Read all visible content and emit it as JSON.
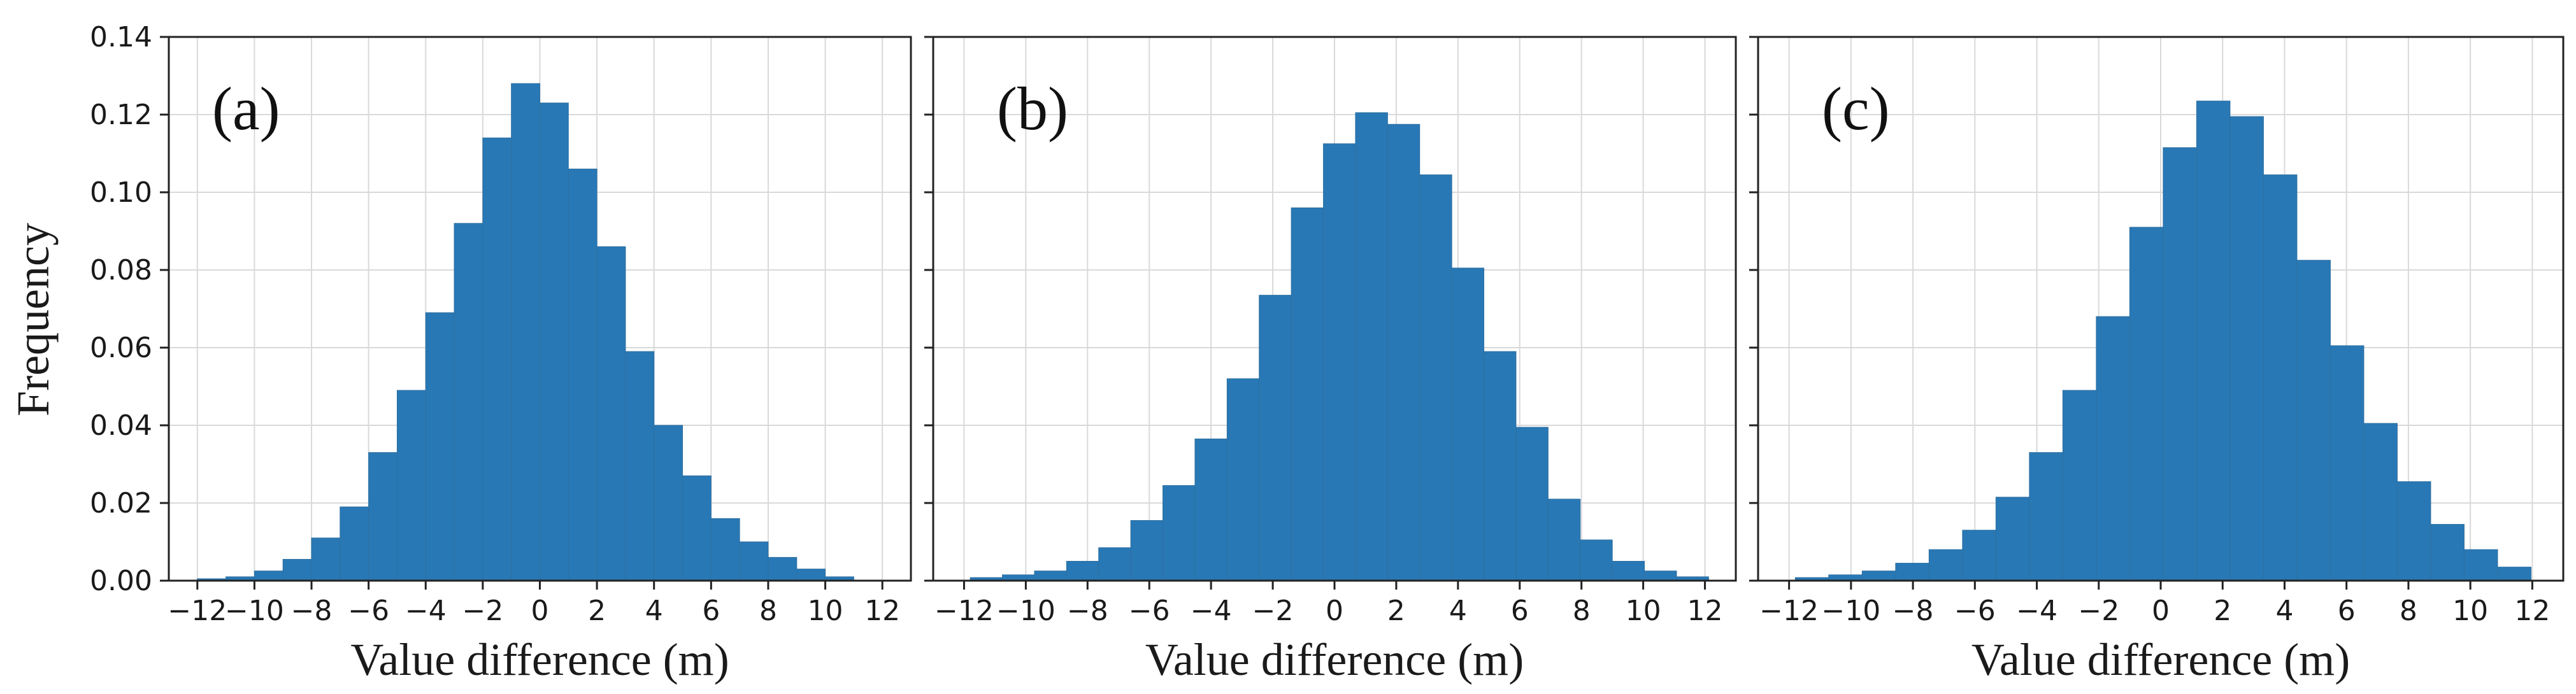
{
  "colors": {
    "bar": "#2878b5",
    "bar_edge": "#2e6fa0",
    "grid": "#d9d9d9",
    "frame": "#222222"
  },
  "figure": {
    "ylabel": "Frequency"
  },
  "chart_data": [
    {
      "type": "bar",
      "panel_label": "(a)",
      "title": "",
      "xlabel": "Value difference (m)",
      "ylabel": "Frequency",
      "xlim": [
        -13,
        13
      ],
      "ylim": [
        0,
        0.14
      ],
      "xticks": [
        -12,
        -10,
        -8,
        -6,
        -4,
        -2,
        0,
        2,
        4,
        6,
        8,
        10,
        12
      ],
      "yticks": [
        0.0,
        0.02,
        0.04,
        0.06,
        0.08,
        0.1,
        0.12,
        0.14
      ],
      "ytick_labels": [
        "0.00",
        "0.02",
        "0.04",
        "0.06",
        "0.08",
        "0.10",
        "0.12",
        "0.14"
      ],
      "grid": true,
      "bin_edges": [
        -12.0,
        -11.0,
        -10.0,
        -9.0,
        -8.0,
        -7.0,
        -6.0,
        -5.0,
        -4.0,
        -3.0,
        -2.0,
        -1.0,
        0.0,
        1.0,
        2.0,
        3.0,
        4.0,
        5.0,
        6.0,
        7.0,
        8.0,
        9.0,
        10.0,
        11.0
      ],
      "values": [
        0.0005,
        0.001,
        0.0025,
        0.0055,
        0.011,
        0.019,
        0.033,
        0.049,
        0.069,
        0.092,
        0.114,
        0.128,
        0.123,
        0.106,
        0.086,
        0.059,
        0.04,
        0.027,
        0.016,
        0.01,
        0.006,
        0.003,
        0.001
      ]
    },
    {
      "type": "bar",
      "panel_label": "(b)",
      "title": "",
      "xlabel": "Value difference (m)",
      "ylabel": "",
      "xlim": [
        -13,
        13
      ],
      "ylim": [
        0,
        0.14
      ],
      "xticks": [
        -12,
        -10,
        -8,
        -6,
        -4,
        -2,
        0,
        2,
        4,
        6,
        8,
        10,
        12
      ],
      "yticks": [
        0.0,
        0.02,
        0.04,
        0.06,
        0.08,
        0.1,
        0.12,
        0.14
      ],
      "grid": true,
      "bin_edges": [
        -11.8,
        -10.76,
        -9.72,
        -8.68,
        -7.64,
        -6.6,
        -5.56,
        -4.52,
        -3.48,
        -2.44,
        -1.4,
        -0.36,
        0.68,
        1.72,
        2.76,
        3.8,
        4.84,
        5.88,
        6.92,
        7.96,
        9.0,
        10.04,
        11.08,
        12.12
      ],
      "values": [
        0.0008,
        0.0015,
        0.0025,
        0.005,
        0.0085,
        0.0155,
        0.0245,
        0.0365,
        0.052,
        0.0735,
        0.096,
        0.1125,
        0.1205,
        0.1175,
        0.1045,
        0.0805,
        0.059,
        0.0395,
        0.021,
        0.0105,
        0.005,
        0.0025,
        0.001
      ]
    },
    {
      "type": "bar",
      "panel_label": "(c)",
      "title": "",
      "xlabel": "Value difference (m)",
      "ylabel": "",
      "xlim": [
        -13,
        13
      ],
      "ylim": [
        0,
        0.14
      ],
      "xticks": [
        -12,
        -10,
        -8,
        -6,
        -4,
        -2,
        0,
        2,
        4,
        6,
        8,
        10,
        12
      ],
      "yticks": [
        0.0,
        0.02,
        0.04,
        0.06,
        0.08,
        0.1,
        0.12,
        0.14
      ],
      "grid": true,
      "bin_edges": [
        -11.8,
        -10.72,
        -9.64,
        -8.56,
        -7.48,
        -6.4,
        -5.32,
        -4.24,
        -3.16,
        -2.08,
        -1.0,
        0.08,
        1.16,
        2.24,
        3.32,
        4.4,
        5.48,
        6.56,
        7.64,
        8.72,
        9.8,
        10.88,
        11.96
      ],
      "values": [
        0.0008,
        0.0015,
        0.0025,
        0.0045,
        0.008,
        0.013,
        0.0215,
        0.033,
        0.049,
        0.068,
        0.091,
        0.1115,
        0.1235,
        0.1195,
        0.1045,
        0.0825,
        0.0605,
        0.0405,
        0.0255,
        0.0145,
        0.008,
        0.0035,
        0.0015
      ]
    }
  ]
}
